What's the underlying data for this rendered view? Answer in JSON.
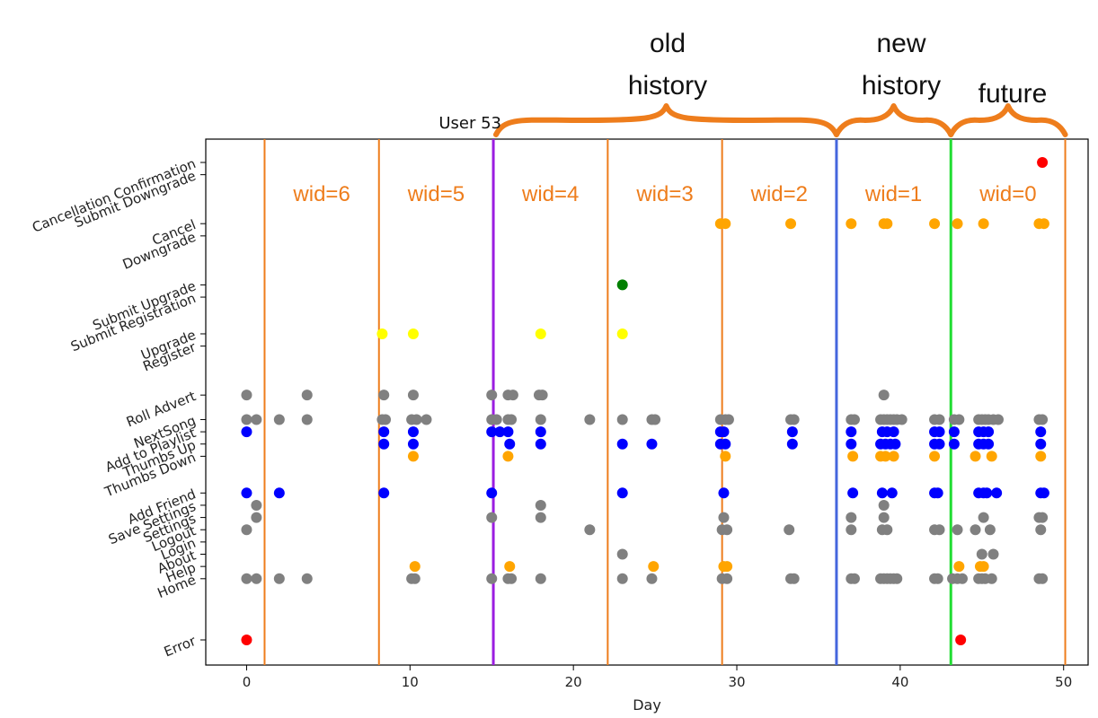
{
  "chart_data": {
    "type": "scatter",
    "title": "User 53",
    "xlabel": "Day",
    "ylabel": "",
    "xlim": [
      -2.5,
      51.5
    ],
    "xticks": [
      0,
      10,
      20,
      30,
      40,
      50
    ],
    "grid": false,
    "categories": [
      "Error",
      "Home",
      "Help",
      "About",
      "Login",
      "Logout",
      "Settings",
      "Save Settings",
      "Add Friend",
      "Thumbs Down",
      "Thumbs Up",
      "Add to Playlist",
      "NextSong",
      "Roll Advert",
      "Register",
      "Upgrade",
      "Submit Registration",
      "Submit Upgrade",
      "Downgrade",
      "Cancel",
      "Submit Downgrade",
      "Cancellation Confirmation"
    ],
    "category_positions": [
      0,
      5,
      6,
      7,
      8,
      9,
      10,
      11,
      12,
      15,
      16,
      17,
      18,
      20,
      24,
      25,
      28,
      29,
      33,
      34,
      38,
      39
    ],
    "colors": {
      "gray": "#808080",
      "blue": "#0000ff",
      "orange": "#ffa500",
      "yellow": "#ffff00",
      "green": "#008000",
      "red": "#ff0000"
    },
    "series": [
      {
        "category": "Error",
        "color": "red",
        "x": [
          0,
          43.7
        ]
      },
      {
        "category": "Home",
        "color": "gray",
        "x": [
          0,
          0.6,
          2,
          3.7,
          10.1,
          10.3,
          15,
          16,
          16.2,
          18,
          23,
          24.8,
          29.1,
          29.4,
          33.3,
          33.5,
          37,
          37.2,
          38.8,
          39,
          39.2,
          39.4,
          39.6,
          39.8,
          42.1,
          42.3,
          43.2,
          43.5,
          43.8,
          44.8,
          45,
          45.2,
          45.6,
          48.5,
          48.7
        ]
      },
      {
        "category": "Help",
        "color": "orange",
        "x": [
          10.3,
          16.1,
          24.9,
          29.2,
          29.4,
          43.6,
          44.9,
          45.1
        ]
      },
      {
        "category": "About",
        "color": "gray",
        "x": [
          23,
          45,
          45.7
        ]
      },
      {
        "category": "Logout",
        "color": "gray",
        "x": [
          0,
          21,
          29.1,
          29.4,
          33.2,
          37,
          38.9,
          39.2,
          42.1,
          42.4,
          43.5,
          44.6,
          45.5,
          48.6
        ]
      },
      {
        "category": "Settings",
        "color": "gray",
        "x": [
          0.6,
          15,
          18,
          29.2,
          37,
          39,
          45.1,
          48.5,
          48.7
        ]
      },
      {
        "category": "Save Settings",
        "color": "gray",
        "x": [
          0.6,
          18,
          39
        ]
      },
      {
        "category": "Add Friend",
        "color": "blue",
        "x": [
          0,
          2,
          8.4,
          15,
          23,
          29.2,
          37.1,
          38.9,
          39.5,
          42.1,
          42.3,
          44.8,
          45.1,
          45.3,
          45.9,
          48.6,
          48.8
        ]
      },
      {
        "category": "Thumbs Down",
        "color": "orange",
        "x": [
          10.2,
          16,
          29.3,
          37.1,
          38.8,
          39.1,
          39.6,
          42.1,
          44.6,
          45.6,
          48.6
        ]
      },
      {
        "category": "Thumbs Up",
        "color": "blue",
        "x": [
          8.4,
          10.2,
          16.1,
          18,
          23,
          24.8,
          29,
          29.3,
          33.4,
          37,
          38.8,
          39.1,
          39.4,
          39.7,
          42.1,
          42.4,
          43.3,
          44.8,
          45.1,
          45.4,
          48.6
        ]
      },
      {
        "category": "Add to Playlist",
        "color": "blue",
        "x": [
          0,
          8.4,
          10.2,
          15,
          15.5,
          16,
          18,
          29,
          29.2,
          33.4,
          37,
          38.9,
          39.2,
          39.6,
          42.1,
          42.4,
          43.3,
          44.8,
          45.1,
          45.4,
          48.6
        ]
      },
      {
        "category": "NextSong",
        "color": "gray",
        "x": [
          0,
          0.6,
          2,
          3.7,
          8.3,
          8.5,
          10.1,
          10.4,
          11,
          15,
          15.3,
          16,
          16.2,
          18,
          21,
          23,
          24.8,
          25,
          29,
          29.3,
          29.5,
          33.3,
          33.5,
          37,
          37.2,
          38.8,
          39,
          39.2,
          39.4,
          39.6,
          39.8,
          40.1,
          42.1,
          42.4,
          43.3,
          43.6,
          44.8,
          45,
          45.2,
          45.4,
          45.7,
          46,
          48.5,
          48.7
        ]
      },
      {
        "category": "Roll Advert",
        "color": "gray",
        "x": [
          0,
          3.7,
          8.4,
          10.2,
          15,
          16,
          16.3,
          17.9,
          18.1,
          39
        ]
      },
      {
        "category": "Upgrade",
        "color": "yellow",
        "x": [
          8.3,
          10.2,
          18,
          23
        ]
      },
      {
        "category": "Submit Upgrade",
        "color": "green",
        "x": [
          23
        ]
      },
      {
        "category": "Cancel",
        "color": "orange",
        "x": [
          29,
          29.3,
          33.3,
          37,
          39,
          39.2,
          42.1,
          43.5,
          45.1,
          48.5
        ]
      },
      {
        "category": "Cancel",
        "color": "orange",
        "x": [
          48.8
        ],
        "note": ""
      },
      {
        "category": "Cancellation Confirmation",
        "color": "red",
        "x": [
          48.7
        ]
      }
    ],
    "vlines": [
      {
        "x": 1.1,
        "color": "#ee7d1c",
        "width": 2
      },
      {
        "x": 8.1,
        "color": "#ee7d1c",
        "width": 2
      },
      {
        "x": 15.1,
        "color": "#9b1de0",
        "width": 3
      },
      {
        "x": 22.1,
        "color": "#ee7d1c",
        "width": 2
      },
      {
        "x": 29.1,
        "color": "#ee7d1c",
        "width": 2
      },
      {
        "x": 36.1,
        "color": "#4466dd",
        "width": 3
      },
      {
        "x": 43.1,
        "color": "#22dd33",
        "width": 3
      },
      {
        "x": 50.1,
        "color": "#ee7d1c",
        "width": 2
      }
    ],
    "windows": [
      "wid=6",
      "wid=5",
      "wid=4",
      "wid=3",
      "wid=2",
      "wid=1",
      "wid=0"
    ],
    "sections": [
      {
        "lines": [
          "old",
          "history"
        ],
        "from": 15.1,
        "to": 36.1
      },
      {
        "lines": [
          "new",
          "history"
        ],
        "from": 36.1,
        "to": 43.1
      },
      {
        "lines": [
          "future"
        ],
        "from": 43.1,
        "to": 50.1
      }
    ]
  }
}
